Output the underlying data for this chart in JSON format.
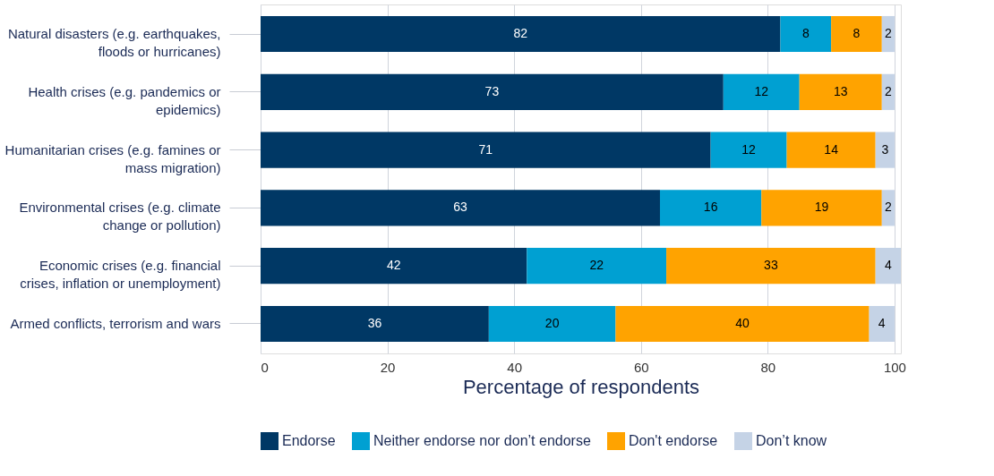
{
  "chart_data": {
    "type": "bar",
    "orientation": "horizontal",
    "stacked": true,
    "data_labels": true,
    "grid": "x",
    "legend": "bottom",
    "xlabel": "Percentage of respondents",
    "categories": [
      "Natural disasters (e.g. earthquakes, floods or hurricanes)",
      "Health crises (e.g. pandemics or epidemics)",
      "Humanitarian crises (e.g. famines or mass migration)",
      "Environmental crises (e.g. climate change or pollution)",
      "Economic crises (e.g. financial crises, inflation or unemployment)",
      "Armed conflicts, terrorism and wars"
    ],
    "series": [
      {
        "name": "Endorse",
        "color": "#003865",
        "values": [
          82,
          73,
          71,
          63,
          42,
          36
        ]
      },
      {
        "name": "Neither endorse nor don’t endorse",
        "color": "#00a0d2",
        "values": [
          8,
          12,
          12,
          16,
          22,
          20
        ]
      },
      {
        "name": "Don't endorse",
        "color": "#ffa300",
        "values": [
          8,
          13,
          14,
          19,
          33,
          40
        ]
      },
      {
        "name": "Don’t know",
        "color": "#c5d3e6",
        "values": [
          2,
          2,
          3,
          2,
          4,
          4
        ]
      }
    ],
    "xlim": [
      0,
      101
    ],
    "xticks": [
      0,
      20,
      40,
      60,
      80,
      100
    ]
  }
}
